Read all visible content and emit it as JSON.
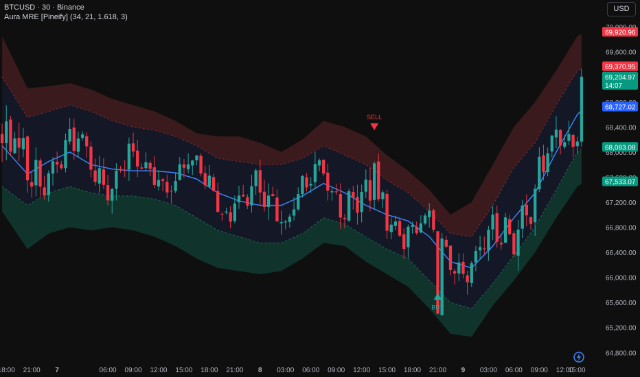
{
  "header": {
    "symbol_line": "BTCUSD · 30 · Binance",
    "indicator_line": "Aura MRE [Pineify] (34, 21, 1.618, 3)"
  },
  "currency_button": "USD",
  "icons": {
    "brand": "tradingview-lightning-icon"
  },
  "colors": {
    "background": "#0f0f0f",
    "bull": "#26a69a",
    "bear": "#f23645",
    "mid_line": "#3b82f6",
    "upper_fill": "#3a1a1c",
    "lower_fill": "#10332c",
    "inner_fill": "#141726",
    "axis_text": "#b2b5be"
  },
  "signals": [
    {
      "label": "SELL",
      "x": "2024-11-08 10:00",
      "price": 68350,
      "type": "sell"
    },
    {
      "label": "BUY",
      "x": "2024-11-08 23:00",
      "price": 65750,
      "type": "buy"
    }
  ],
  "chart_data": {
    "type": "candlestick",
    "title": "BTCUSD · 30 · Binance",
    "x_ticks": [
      "18:00",
      "21:00",
      "7",
      "06:00",
      "09:00",
      "12:00",
      "15:00",
      "18:00",
      "21:00",
      "8",
      "03:00",
      "06:00",
      "09:00",
      "12:00",
      "15:00",
      "18:00",
      "21:00",
      "9",
      "03:00",
      "06:00",
      "09:00",
      "12:00",
      "15:00"
    ],
    "y_ticks": [
      "64,800.00",
      "65,200.00",
      "65,600.00",
      "66,000.00",
      "66,400.00",
      "66,800.00",
      "67,200.00",
      "67,600.00",
      "68,000.00",
      "68,400.00",
      "68,800.00",
      "69,200.00",
      "69,600.00",
      "70,000.00"
    ],
    "ylim": [
      64650,
      70100
    ],
    "x_range": [
      "2024-11-06 17:30",
      "2024-11-09 16:00"
    ],
    "price_labels": [
      {
        "value": "69,920.96",
        "price": 69920.96,
        "kind": "upper-band"
      },
      {
        "value": "69,370.95",
        "price": 69370.95,
        "kind": "upper-inner"
      },
      {
        "value": "69,204.97",
        "price": 69204.97,
        "kind": "last-price",
        "countdown": "14:07"
      },
      {
        "value": "68,727.02",
        "price": 68727.02,
        "kind": "mid-line"
      },
      {
        "value": "68,083.08",
        "price": 68083.08,
        "kind": "lower-inner"
      },
      {
        "value": "67,533.07",
        "price": 67533.07,
        "kind": "lower-band"
      }
    ],
    "series": [
      {
        "name": "Aura MRE basis",
        "points": [
          [
            0,
            68100
          ],
          [
            6,
            67650
          ],
          [
            11,
            67850
          ],
          [
            16,
            68000
          ],
          [
            21,
            67800
          ],
          [
            26,
            67730
          ],
          [
            31,
            67700
          ],
          [
            36,
            67700
          ],
          [
            41,
            67670
          ],
          [
            46,
            67570
          ],
          [
            51,
            67350
          ],
          [
            56,
            67220
          ],
          [
            61,
            67150
          ],
          [
            66,
            67150
          ],
          [
            71,
            67300
          ],
          [
            76,
            67500
          ],
          [
            81,
            67350
          ],
          [
            86,
            67150
          ],
          [
            91,
            67000
          ],
          [
            96,
            66900
          ],
          [
            101,
            66650
          ],
          [
            106,
            66250
          ],
          [
            111,
            66150
          ],
          [
            116,
            66500
          ],
          [
            121,
            66950
          ],
          [
            126,
            67350
          ],
          [
            131,
            68000
          ],
          [
            136,
            68600
          ],
          [
            138,
            68727
          ]
        ]
      },
      {
        "name": "Upper band",
        "points": [
          [
            0,
            69850
          ],
          [
            6,
            69020
          ],
          [
            11,
            69050
          ],
          [
            16,
            69100
          ],
          [
            21,
            69000
          ],
          [
            26,
            68850
          ],
          [
            31,
            68750
          ],
          [
            36,
            68650
          ],
          [
            41,
            68500
          ],
          [
            46,
            68300
          ],
          [
            51,
            68250
          ],
          [
            56,
            68250
          ],
          [
            61,
            68150
          ],
          [
            66,
            68000
          ],
          [
            71,
            68200
          ],
          [
            76,
            68500
          ],
          [
            81,
            68400
          ],
          [
            86,
            68250
          ],
          [
            91,
            67950
          ],
          [
            96,
            67700
          ],
          [
            101,
            67400
          ],
          [
            106,
            67000
          ],
          [
            111,
            67200
          ],
          [
            116,
            67800
          ],
          [
            121,
            68400
          ],
          [
            126,
            68800
          ],
          [
            131,
            69300
          ],
          [
            136,
            69850
          ],
          [
            138,
            69921
          ]
        ]
      },
      {
        "name": "Upper inner",
        "points": [
          [
            0,
            69200
          ],
          [
            6,
            68550
          ],
          [
            11,
            68650
          ],
          [
            16,
            68750
          ],
          [
            21,
            68650
          ],
          [
            26,
            68500
          ],
          [
            31,
            68400
          ],
          [
            36,
            68350
          ],
          [
            41,
            68250
          ],
          [
            46,
            68100
          ],
          [
            51,
            67900
          ],
          [
            56,
            67850
          ],
          [
            61,
            67800
          ],
          [
            66,
            67800
          ],
          [
            71,
            67900
          ],
          [
            76,
            68100
          ],
          [
            81,
            67950
          ],
          [
            86,
            67800
          ],
          [
            91,
            67550
          ],
          [
            96,
            67350
          ],
          [
            101,
            67050
          ],
          [
            106,
            66700
          ],
          [
            111,
            66650
          ],
          [
            116,
            67150
          ],
          [
            121,
            67750
          ],
          [
            126,
            68150
          ],
          [
            131,
            68750
          ],
          [
            136,
            69300
          ],
          [
            138,
            69371
          ]
        ]
      },
      {
        "name": "Lower inner",
        "points": [
          [
            0,
            67450
          ],
          [
            6,
            67150
          ],
          [
            11,
            67350
          ],
          [
            16,
            67450
          ],
          [
            21,
            67350
          ],
          [
            26,
            67300
          ],
          [
            31,
            67300
          ],
          [
            36,
            67250
          ],
          [
            41,
            67150
          ],
          [
            46,
            66950
          ],
          [
            51,
            66750
          ],
          [
            56,
            66650
          ],
          [
            61,
            66550
          ],
          [
            66,
            66550
          ],
          [
            71,
            66700
          ],
          [
            76,
            66950
          ],
          [
            81,
            66850
          ],
          [
            86,
            66650
          ],
          [
            91,
            66450
          ],
          [
            96,
            66300
          ],
          [
            101,
            65950
          ],
          [
            106,
            65600
          ],
          [
            111,
            65500
          ],
          [
            116,
            65900
          ],
          [
            121,
            66350
          ],
          [
            126,
            66800
          ],
          [
            131,
            67400
          ],
          [
            136,
            68000
          ],
          [
            138,
            68083
          ]
        ]
      },
      {
        "name": "Lower band",
        "points": [
          [
            0,
            67050
          ],
          [
            6,
            66450
          ],
          [
            11,
            66700
          ],
          [
            16,
            66800
          ],
          [
            21,
            66750
          ],
          [
            26,
            66800
          ],
          [
            31,
            66750
          ],
          [
            36,
            66650
          ],
          [
            41,
            66500
          ],
          [
            46,
            66300
          ],
          [
            51,
            66150
          ],
          [
            56,
            66100
          ],
          [
            61,
            66050
          ],
          [
            66,
            66100
          ],
          [
            71,
            66300
          ],
          [
            76,
            66550
          ],
          [
            81,
            66500
          ],
          [
            86,
            66250
          ],
          [
            91,
            66050
          ],
          [
            96,
            65850
          ],
          [
            101,
            65500
          ],
          [
            106,
            65100
          ],
          [
            111,
            65050
          ],
          [
            116,
            65550
          ],
          [
            121,
            65950
          ],
          [
            126,
            66400
          ],
          [
            131,
            66950
          ],
          [
            136,
            67450
          ],
          [
            138,
            67533
          ]
        ]
      }
    ]
  }
}
